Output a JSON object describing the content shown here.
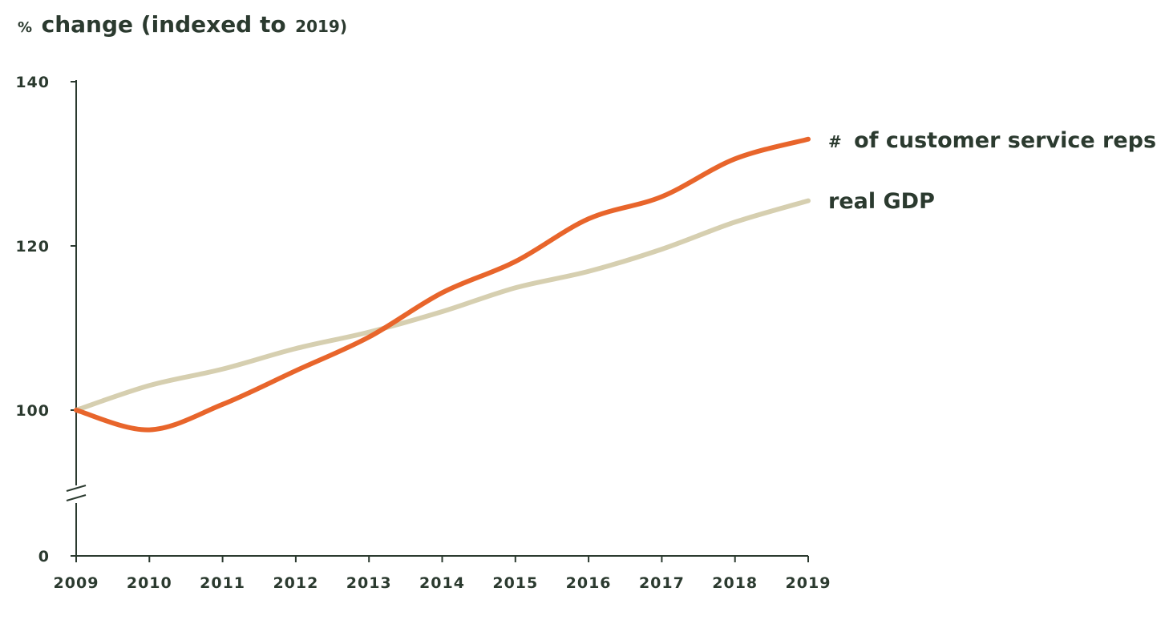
{
  "chart_data": {
    "type": "line",
    "title": {
      "prefix": "%",
      "main": "change (indexed to",
      "year": "2019)"
    },
    "x": [
      2009,
      2010,
      2011,
      2012,
      2013,
      2014,
      2015,
      2016,
      2017,
      2018,
      2019
    ],
    "x_tick_labels": [
      "2009",
      "2010",
      "2011",
      "2012",
      "2013",
      "2014",
      "2015",
      "2016",
      "2017",
      "2018",
      "2019"
    ],
    "y_ticks": [
      0,
      100,
      120,
      140
    ],
    "y_tick_labels": [
      "0",
      "100",
      "120",
      "140"
    ],
    "ylim": [
      0,
      140
    ],
    "y_axis_break": true,
    "grid": false,
    "legend": "inline-right",
    "series": [
      {
        "name": "# of customer service reps",
        "label_prefix": "#",
        "label_main": "of customer service reps",
        "color": "#e8652b",
        "values": [
          100,
          97.6,
          100.7,
          104.8,
          108.9,
          114.3,
          118.1,
          123.3,
          126.0,
          130.6,
          133.0
        ]
      },
      {
        "name": "real GDP",
        "label_prefix": "",
        "label_main": "real GDP",
        "color": "#d6cfb0",
        "values": [
          100,
          103.0,
          105.0,
          107.5,
          109.5,
          112.0,
          114.9,
          116.9,
          119.6,
          122.9,
          125.5
        ]
      }
    ]
  },
  "colors": {
    "axis": "#2b3a2f",
    "text": "#2b3a2f",
    "background": "#ffffff"
  }
}
